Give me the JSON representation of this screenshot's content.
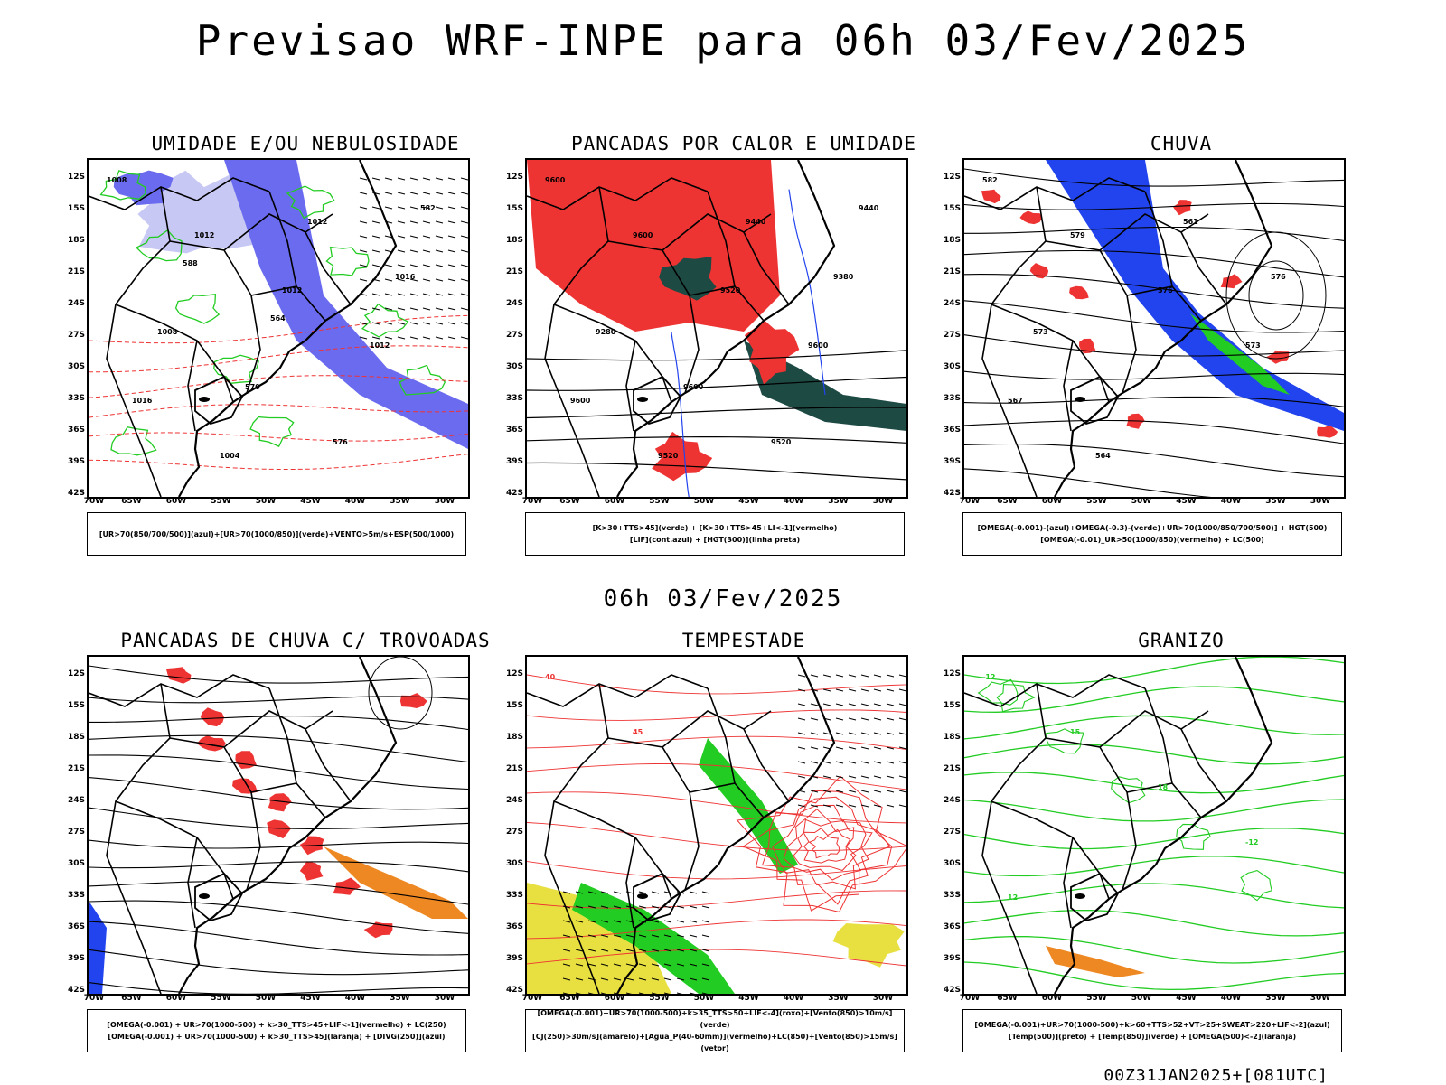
{
  "main_title": "Previsao WRF-INPE  para 06h 03/Fev/2025",
  "mid_title": "06h 03/Fev/2025",
  "footer": "00Z31JAN2025+[081UTC]",
  "axis": {
    "lat_labels": [
      "12S",
      "15S",
      "18S",
      "21S",
      "24S",
      "27S",
      "30S",
      "33S",
      "36S",
      "39S",
      "42S"
    ],
    "lon_labels": [
      "70W",
      "65W",
      "60W",
      "55W",
      "50W",
      "45W",
      "40W",
      "35W",
      "30W"
    ]
  },
  "colors": {
    "humidity_blue": "#6b6bf0",
    "humidity_light": "#c8c8f4",
    "green": "#22cc22",
    "red": "#ee3333",
    "darkgreen": "#1e4a44",
    "blue": "#2244ee",
    "orange": "#ee8822",
    "yellow": "#e8e040",
    "magenta": "#cc22cc"
  },
  "panels": [
    {
      "title": "UMIDADE E/OU NEBULOSIDADE",
      "legend": [
        "[UR>70(850/700/500)](azul)+[UR>70(1000/850)](verde)+VENTO>5m/s+ESP(500/1000)"
      ],
      "labels": [
        "1008",
        "1012",
        "1012",
        "1012",
        "1016",
        "1004",
        "1012",
        "1016",
        "1008",
        "570",
        "576",
        "582",
        "588",
        "564"
      ]
    },
    {
      "title": "PANCADAS POR CALOR E UMIDADE",
      "legend": [
        "[K>30+TTS>45](verde) + [K>30+TTS>45+LI<-1](vermelho)",
        "[LIF](cont.azul) + [HGT(300)](linha preta)"
      ],
      "labels": [
        "9600",
        "9600",
        "9520",
        "9600",
        "9600",
        "9520",
        "9440",
        "9380",
        "9280",
        "9600",
        "9520",
        "9440"
      ]
    },
    {
      "title": "CHUVA",
      "legend": [
        "[OMEGA(-0.001)-(azul)+OMEGA(-0.3)-(verde)+UR>70(1000/850/700/500)] + HGT(500)",
        "[OMEGA(-0.01)_UR>50(1000/850)(vermelho) + LC(500)"
      ],
      "labels": [
        "582",
        "579",
        "576",
        "573",
        "567",
        "564",
        "561",
        "576",
        "573"
      ]
    },
    {
      "title": "PANCADAS DE CHUVA C/ TROVOADAS",
      "legend": [
        "[OMEGA(-0.001) + UR>70(1000-500) + k>30_TTS>45+LIF<-1](vermelho) + LC(250)",
        "[OMEGA(-0.001) + UR>70(1000-500) + k>30_TTS>45](laranja) + [DIVG(250)](azul)"
      ],
      "labels": []
    },
    {
      "title": "TEMPESTADE",
      "legend": [
        "[OMEGA(-0.001)+UR>70(1000-500)+k>35_TTS>50+LIF<-4](roxo)+[Vento(850)>10m/s](verde)",
        "[CJ(250)>30m/s](amarelo)+[Agua_P(40-60mm)](vermelho)+LC(850)+[Vento(850)>15m/s](vetor)"
      ],
      "labels": [
        "40",
        "45"
      ]
    },
    {
      "title": "GRANIZO",
      "legend": [
        "[OMEGA(-0.001)+UR>70(1000-500)+k>60+TTS>52+VT>25+SWEAT>220+LIF<-2](azul)",
        "[Temp(500)](preto) + [Temp(850)](verde) + [OMEGA(500)<-2](laranja)"
      ],
      "labels": [
        "-12",
        "15",
        "18",
        "-12",
        "12"
      ]
    }
  ]
}
